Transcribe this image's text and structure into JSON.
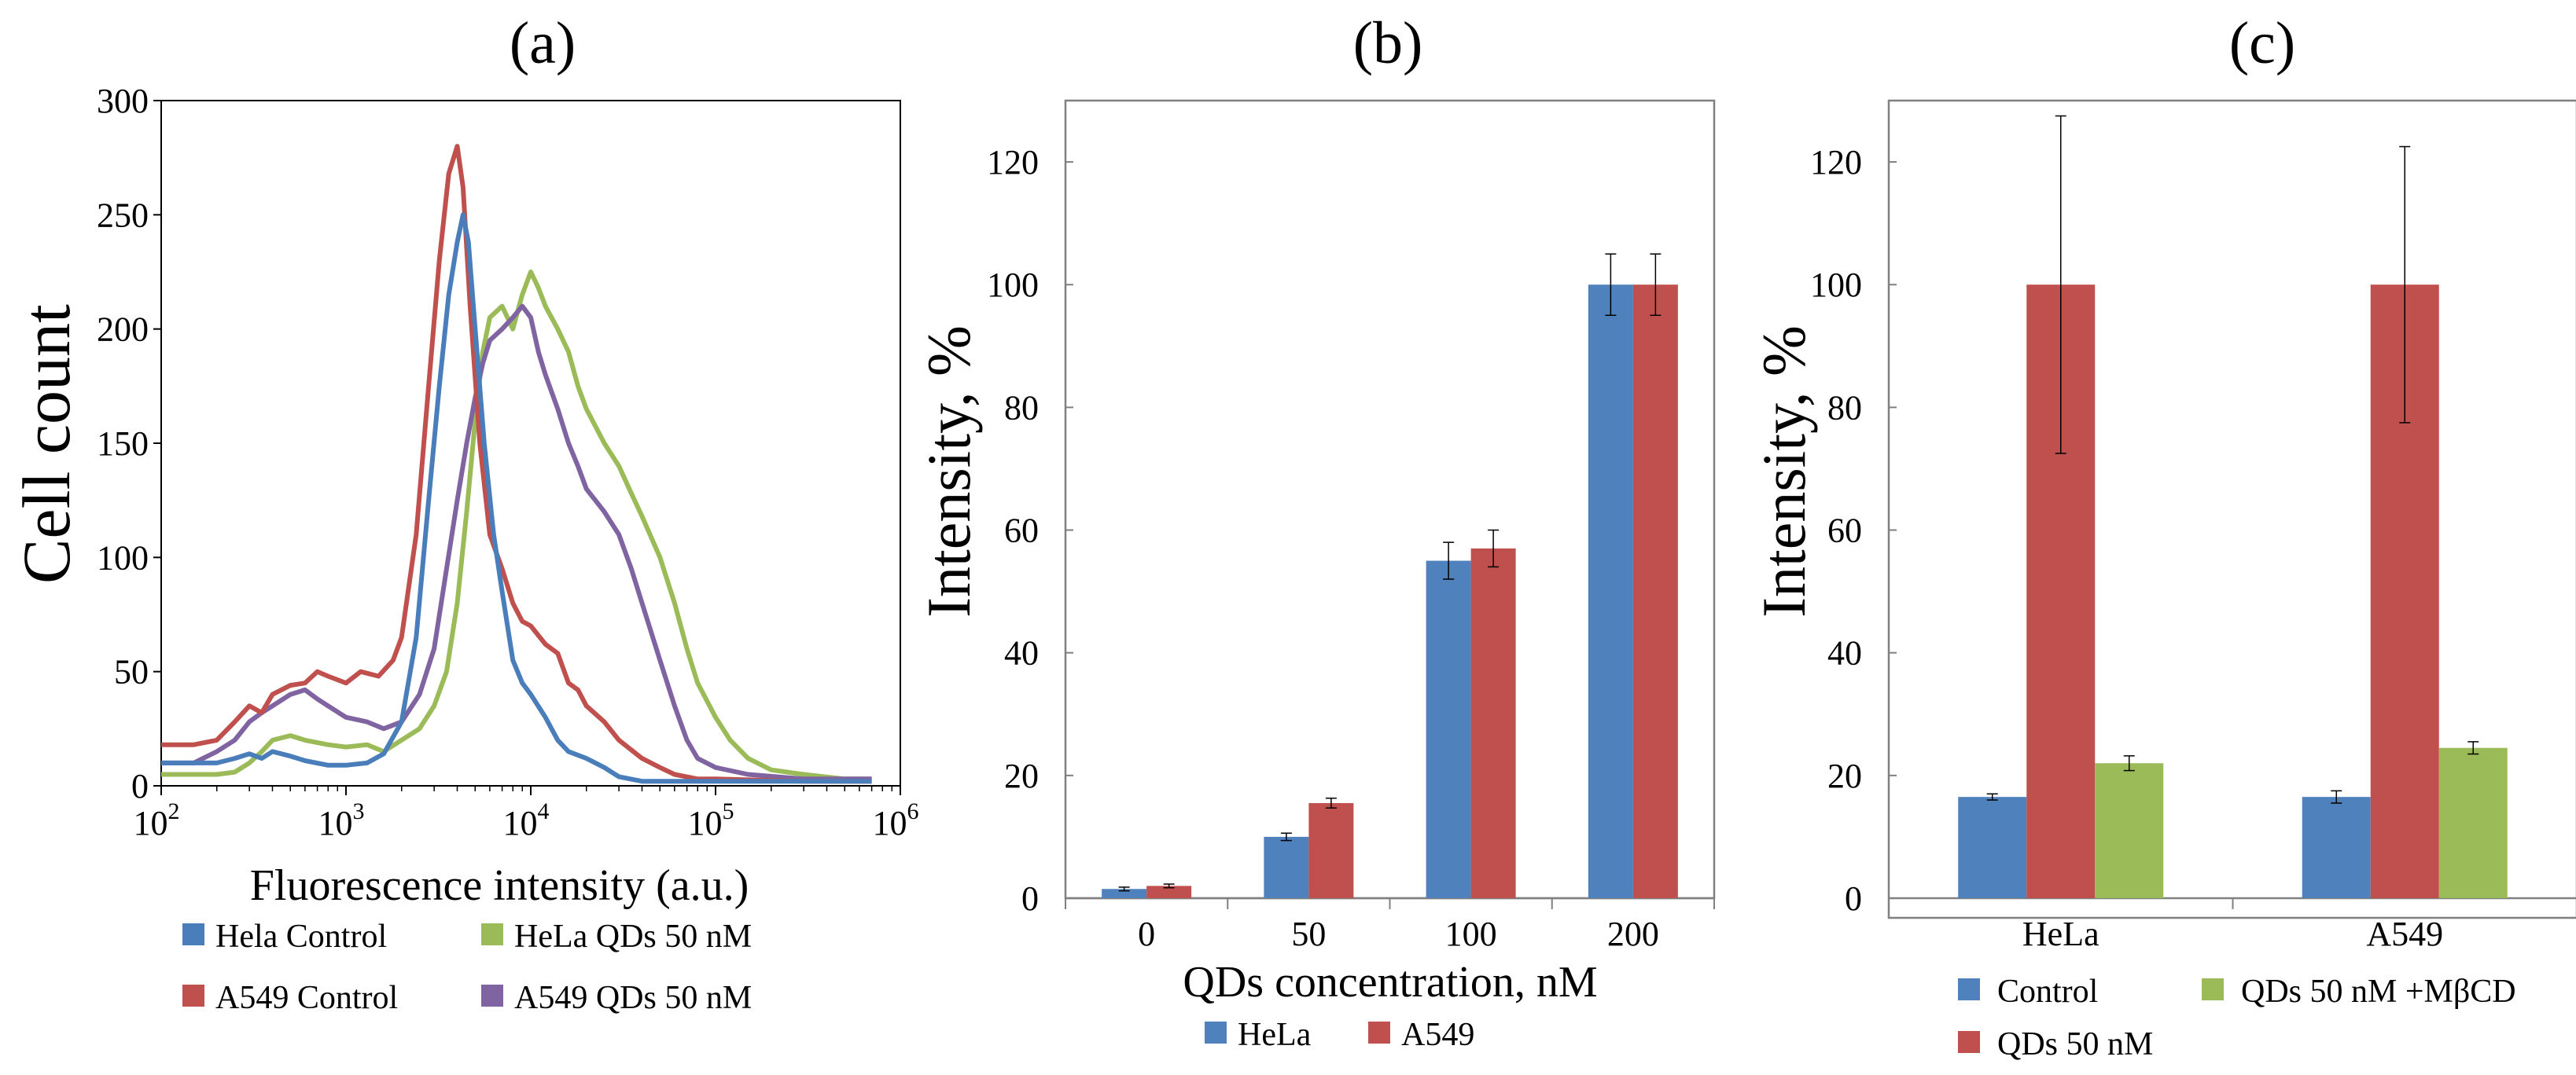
{
  "chart_data": [
    {
      "panel": "(a)",
      "type": "line",
      "ylabel": "Cell count",
      "xlabel": "Fluorescence intensity (a.u.)",
      "xscale": "log",
      "xlim": [
        100,
        1000000
      ],
      "ylim": [
        0,
        300
      ],
      "xticks": [
        {
          "base": "10",
          "exp": "2"
        },
        {
          "base": "10",
          "exp": "3"
        },
        {
          "base": "10",
          "exp": "4"
        },
        {
          "base": "10",
          "exp": "5"
        },
        {
          "base": "10",
          "exp": "6"
        }
      ],
      "yticks": [
        "0",
        "50",
        "100",
        "150",
        "200",
        "250",
        "300"
      ],
      "series": [
        {
          "name": "Hela Control",
          "color": "#4a7ebb",
          "points": [
            [
              100,
              10
            ],
            [
              150,
              10
            ],
            [
              200,
              10
            ],
            [
              250,
              12
            ],
            [
              300,
              14
            ],
            [
              350,
              12
            ],
            [
              400,
              15
            ],
            [
              500,
              13
            ],
            [
              600,
              11
            ],
            [
              800,
              9
            ],
            [
              1000,
              9
            ],
            [
              1300,
              10
            ],
            [
              1600,
              14
            ],
            [
              2000,
              28
            ],
            [
              2400,
              65
            ],
            [
              2800,
              125
            ],
            [
              3200,
              175
            ],
            [
              3600,
              215
            ],
            [
              4000,
              238
            ],
            [
              4300,
              250
            ],
            [
              4600,
              238
            ],
            [
              5000,
              200
            ],
            [
              5600,
              150
            ],
            [
              6300,
              110
            ],
            [
              7000,
              85
            ],
            [
              8000,
              55
            ],
            [
              9000,
              45
            ],
            [
              10000,
              40
            ],
            [
              12000,
              30
            ],
            [
              14000,
              20
            ],
            [
              16000,
              15
            ],
            [
              20000,
              12
            ],
            [
              25000,
              8
            ],
            [
              30000,
              4
            ],
            [
              40000,
              2
            ],
            [
              60000,
              2
            ],
            [
              100000,
              2
            ],
            [
              300000,
              2
            ],
            [
              700000,
              2
            ]
          ]
        },
        {
          "name": "A549 Control",
          "color": "#c0504d",
          "points": [
            [
              100,
              18
            ],
            [
              150,
              18
            ],
            [
              200,
              20
            ],
            [
              250,
              28
            ],
            [
              300,
              35
            ],
            [
              350,
              32
            ],
            [
              400,
              40
            ],
            [
              500,
              44
            ],
            [
              600,
              45
            ],
            [
              700,
              50
            ],
            [
              800,
              48
            ],
            [
              1000,
              45
            ],
            [
              1200,
              50
            ],
            [
              1500,
              48
            ],
            [
              1800,
              55
            ],
            [
              2000,
              65
            ],
            [
              2400,
              110
            ],
            [
              2800,
              175
            ],
            [
              3200,
              230
            ],
            [
              3600,
              268
            ],
            [
              4000,
              280
            ],
            [
              4300,
              262
            ],
            [
              4700,
              210
            ],
            [
              5300,
              150
            ],
            [
              6000,
              110
            ],
            [
              7000,
              95
            ],
            [
              8000,
              80
            ],
            [
              9000,
              72
            ],
            [
              10000,
              70
            ],
            [
              12000,
              62
            ],
            [
              14000,
              58
            ],
            [
              16000,
              45
            ],
            [
              18000,
              42
            ],
            [
              20000,
              35
            ],
            [
              25000,
              28
            ],
            [
              30000,
              20
            ],
            [
              40000,
              12
            ],
            [
              50000,
              8
            ],
            [
              60000,
              5
            ],
            [
              80000,
              3
            ],
            [
              100000,
              3
            ],
            [
              300000,
              2
            ],
            [
              700000,
              2
            ]
          ]
        },
        {
          "name": "HeLa QDs 50 nM",
          "color": "#9bbb59",
          "points": [
            [
              100,
              5
            ],
            [
              150,
              5
            ],
            [
              200,
              5
            ],
            [
              250,
              6
            ],
            [
              300,
              10
            ],
            [
              350,
              15
            ],
            [
              400,
              20
            ],
            [
              500,
              22
            ],
            [
              600,
              20
            ],
            [
              800,
              18
            ],
            [
              1000,
              17
            ],
            [
              1300,
              18
            ],
            [
              1600,
              15
            ],
            [
              2000,
              20
            ],
            [
              2500,
              25
            ],
            [
              3000,
              35
            ],
            [
              3500,
              50
            ],
            [
              4000,
              80
            ],
            [
              4500,
              120
            ],
            [
              5000,
              160
            ],
            [
              5500,
              190
            ],
            [
              6000,
              205
            ],
            [
              7000,
              210
            ],
            [
              8000,
              200
            ],
            [
              9000,
              215
            ],
            [
              10000,
              225
            ],
            [
              11000,
              218
            ],
            [
              12000,
              210
            ],
            [
              14000,
              200
            ],
            [
              16000,
              190
            ],
            [
              18000,
              175
            ],
            [
              20000,
              165
            ],
            [
              25000,
              150
            ],
            [
              30000,
              140
            ],
            [
              35000,
              128
            ],
            [
              40000,
              118
            ],
            [
              50000,
              100
            ],
            [
              60000,
              80
            ],
            [
              70000,
              60
            ],
            [
              80000,
              45
            ],
            [
              100000,
              30
            ],
            [
              120000,
              20
            ],
            [
              150000,
              12
            ],
            [
              200000,
              7
            ],
            [
              300000,
              5
            ],
            [
              500000,
              3
            ],
            [
              700000,
              3
            ]
          ]
        },
        {
          "name": "A549 QDs 50 nM",
          "color": "#8064a2",
          "points": [
            [
              100,
              10
            ],
            [
              150,
              10
            ],
            [
              200,
              15
            ],
            [
              250,
              20
            ],
            [
              300,
              28
            ],
            [
              350,
              32
            ],
            [
              400,
              35
            ],
            [
              500,
              40
            ],
            [
              600,
              42
            ],
            [
              700,
              38
            ],
            [
              800,
              35
            ],
            [
              1000,
              30
            ],
            [
              1300,
              28
            ],
            [
              1600,
              25
            ],
            [
              2000,
              28
            ],
            [
              2500,
              40
            ],
            [
              3000,
              60
            ],
            [
              3500,
              95
            ],
            [
              4000,
              125
            ],
            [
              4500,
              150
            ],
            [
              5000,
              170
            ],
            [
              5500,
              185
            ],
            [
              6000,
              195
            ],
            [
              7000,
              200
            ],
            [
              8000,
              205
            ],
            [
              9000,
              210
            ],
            [
              10000,
              205
            ],
            [
              11000,
              190
            ],
            [
              12000,
              180
            ],
            [
              14000,
              165
            ],
            [
              16000,
              150
            ],
            [
              18000,
              140
            ],
            [
              20000,
              130
            ],
            [
              25000,
              120
            ],
            [
              30000,
              110
            ],
            [
              35000,
              95
            ],
            [
              40000,
              80
            ],
            [
              50000,
              55
            ],
            [
              60000,
              35
            ],
            [
              70000,
              20
            ],
            [
              80000,
              12
            ],
            [
              100000,
              8
            ],
            [
              150000,
              5
            ],
            [
              300000,
              3
            ],
            [
              700000,
              3
            ]
          ]
        }
      ]
    },
    {
      "panel": "(b)",
      "type": "bar",
      "ylabel": "Intensity, %",
      "xlabel": "QDs concentration, nM",
      "ylim": [
        0,
        130
      ],
      "yticks": [
        "0",
        "20",
        "40",
        "60",
        "80",
        "100",
        "120"
      ],
      "categories": [
        "0",
        "50",
        "100",
        "200"
      ],
      "series": [
        {
          "name": "HeLa",
          "color": "#4f81bd",
          "values": [
            1.5,
            10,
            55,
            100
          ],
          "errors": [
            0.3,
            0.6,
            3,
            5
          ]
        },
        {
          "name": "A549",
          "color": "#c0504d",
          "values": [
            2,
            15.5,
            57,
            100
          ],
          "errors": [
            0.3,
            0.8,
            3,
            5
          ]
        }
      ]
    },
    {
      "panel": "(c)",
      "type": "bar",
      "ylabel": "Intensity, %",
      "xlabel": "",
      "ylim": [
        0,
        130
      ],
      "yticks": [
        "0",
        "20",
        "40",
        "60",
        "80",
        "100",
        "120"
      ],
      "categories": [
        "HeLa",
        "A549"
      ],
      "series": [
        {
          "name": "Control",
          "color": "#4f81bd",
          "values": [
            16.5,
            16.5
          ],
          "errors": [
            0.5,
            1.0
          ]
        },
        {
          "name": "QDs 50 nM",
          "color": "#c0504d",
          "values": [
            100,
            100
          ],
          "errors": [
            27.5,
            22.5
          ]
        },
        {
          "name": "QDs 50 nM +MβCD",
          "color": "#9bbb59",
          "values": [
            22,
            24.5
          ],
          "errors": [
            1.2,
            1.0
          ]
        }
      ]
    }
  ]
}
